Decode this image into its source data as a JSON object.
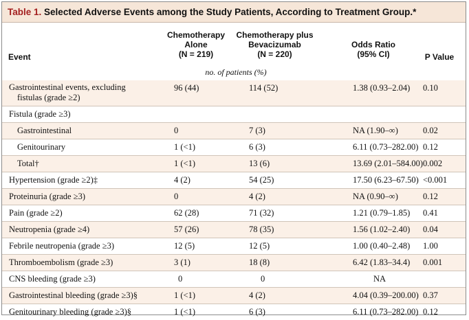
{
  "table": {
    "title_label": "Table 1.",
    "title_text": "Selected Adverse Events among the Study Patients, According to Treatment Group.*",
    "headers": {
      "event": "Event",
      "chemo_alone_l1": "Chemotherapy",
      "chemo_alone_l2": "Alone",
      "chemo_alone_l3": "(N = 219)",
      "chemo_bev_l1": "Chemotherapy plus",
      "chemo_bev_l2": "Bevacizumab",
      "chemo_bev_l3": "(N = 220)",
      "odds_l1": "Odds Ratio",
      "odds_l2": "(95% CI)",
      "pvalue": "P Value"
    },
    "units": "no. of patients (%)",
    "rows": [
      {
        "event_l1": "Gastrointestinal events, excluding",
        "event_l2": "fistulas (grade ≥2)",
        "alone": "96 (44)",
        "bev": "114 (52)",
        "or": "1.38 (0.93–2.04)",
        "p": "0.10"
      },
      {
        "event": "Fistula (grade ≥3)",
        "alone": "",
        "bev": "",
        "or": "",
        "p": ""
      },
      {
        "event": "Gastrointestinal",
        "alone": "0",
        "bev": "7 (3)",
        "or": "NA (1.90–∞)",
        "p": "0.02"
      },
      {
        "event": "Genitourinary",
        "alone": "1 (<1)",
        "bev": "6 (3)",
        "or": "6.11 (0.73–282.00)",
        "p": "0.12"
      },
      {
        "event": "Total†",
        "alone": "1 (<1)",
        "bev": "13 (6)",
        "or": "13.69 (2.01–584.00)",
        "p": "0.002"
      },
      {
        "event": "Hypertension (grade ≥2)‡",
        "alone": "4 (2)",
        "bev": "54 (25)",
        "or": "17.50 (6.23–67.50)",
        "p": "<0.001"
      },
      {
        "event": "Proteinuria (grade ≥3)",
        "alone": "0",
        "bev": "4 (2)",
        "or": "NA (0.90–∞)",
        "p": "0.12"
      },
      {
        "event": "Pain (grade ≥2)",
        "alone": "62 (28)",
        "bev": "71 (32)",
        "or": "1.21 (0.79–1.85)",
        "p": "0.41"
      },
      {
        "event": "Neutropenia (grade ≥4)",
        "alone": "57 (26)",
        "bev": "78 (35)",
        "or": "1.56 (1.02–2.40)",
        "p": "0.04"
      },
      {
        "event": "Febrile neutropenia (grade ≥3)",
        "alone": "12 (5)",
        "bev": "12 (5)",
        "or": "1.00 (0.40–2.48)",
        "p": "1.00"
      },
      {
        "event": "Thromboembolism (grade ≥3)",
        "alone": "3 (1)",
        "bev": "18 (8)",
        "or": "6.42 (1.83–34.4)",
        "p": "0.001"
      },
      {
        "event": "CNS bleeding (grade ≥3)",
        "alone": "0",
        "bev": "0",
        "or": "NA",
        "p": ""
      },
      {
        "event": "Gastrointestinal bleeding (grade ≥3)§",
        "alone": "1 (<1)",
        "bev": "4 (2)",
        "or": "4.04 (0.39–200.00)",
        "p": "0.37"
      },
      {
        "event": "Genitourinary bleeding (grade ≥3)§",
        "alone": "1 (<1)",
        "bev": "6 (3)",
        "or": "6.11 (0.73–282.00)",
        "p": "0.12"
      }
    ]
  }
}
